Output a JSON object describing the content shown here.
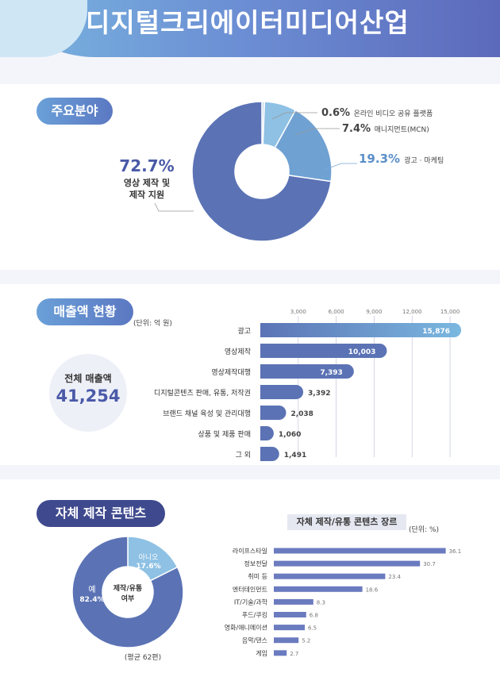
{
  "header": {
    "title": "디지털크리에이터미디어산업"
  },
  "sections": {
    "fields": {
      "title": "주요분야"
    },
    "revenue": {
      "title": "매출액 현황",
      "unit": "(단위: 억 원)",
      "total_label": "전체 매출액",
      "total_value": "41,254"
    },
    "own": {
      "title": "자체 제작 콘텐츠",
      "donut_center": [
        "제작/유통",
        "여부"
      ],
      "note": "(평균 62편)",
      "bar_title": "자체 제작/유통 콘텐츠 장르",
      "bar_unit": "(단위: %)"
    }
  },
  "chart_data": [
    {
      "type": "pie",
      "slices": [
        {
          "label": "영상 제작 및 제작 지원",
          "value": 72.7,
          "display": "72.7%",
          "color": "#5b73b5"
        },
        {
          "label": "광고 · 마케팅",
          "value": 19.3,
          "display": "19.3%",
          "color": "#6fa1d3"
        },
        {
          "label": "매니지먼트(MCN)",
          "value": 7.4,
          "display": "7.4%",
          "color": "#8ec1e4"
        },
        {
          "label": "온라인 비디오 공유 플랫폼",
          "value": 0.6,
          "display": "0.6%",
          "color": "#c6dcec"
        }
      ]
    },
    {
      "type": "bar",
      "orientation": "horizontal",
      "categories": [
        "광고",
        "영상제작",
        "영상제작대행",
        "디지털콘텐츠 판매, 유통, 저작권",
        "브랜드 채널 육성 및 관리대행",
        "상품 및 제품 판매",
        "그 외"
      ],
      "values": [
        15876,
        10003,
        7393,
        3392,
        2038,
        1060,
        1491
      ],
      "value_labels": [
        "15,876",
        "10,003",
        "7,393",
        "3,392",
        "2,038",
        "1,060",
        "1,491"
      ],
      "x_ticks": [
        "3,000",
        "6,000",
        "9,000",
        "12,000",
        "15,000"
      ],
      "xlim": [
        0,
        16000
      ]
    },
    {
      "type": "pie",
      "slices": [
        {
          "label": "예",
          "value": 82.4,
          "display": "82.4%",
          "color": "#5b73b5"
        },
        {
          "label": "아니오",
          "value": 17.6,
          "display": "17.6%",
          "color": "#8ec1e4"
        }
      ]
    },
    {
      "type": "bar",
      "orientation": "horizontal",
      "categories": [
        "라이프스타일",
        "정보전달",
        "취미 등",
        "엔터테인먼트",
        "IT/기술/과학",
        "푸드/쿠킹",
        "영화/애니메이션",
        "음악/댄스",
        "게임"
      ],
      "values": [
        36.1,
        30.7,
        23.4,
        18.6,
        8.3,
        6.8,
        6.5,
        5.2,
        2.7
      ],
      "xlim": [
        0,
        40
      ]
    }
  ]
}
